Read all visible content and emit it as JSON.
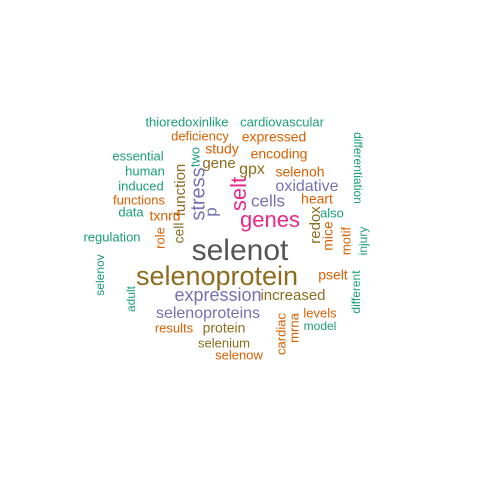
{
  "colors": {
    "teal": "#1B9E77",
    "orange": "#D95F02",
    "purple": "#7570B3",
    "magenta": "#E7298A",
    "olive": "#8C6D1F",
    "gray": "#555555"
  },
  "words": [
    {
      "text": "selenot",
      "color": "gray"
    },
    {
      "text": "selenoprotein",
      "color": "olive"
    },
    {
      "text": "genes",
      "color": "magenta"
    },
    {
      "text": "selt",
      "color": "magenta"
    },
    {
      "text": "stress",
      "color": "purple"
    },
    {
      "text": "expression",
      "color": "purple"
    },
    {
      "text": "selenoproteins",
      "color": "purple"
    },
    {
      "text": "cells",
      "color": "purple"
    },
    {
      "text": "oxidative",
      "color": "purple"
    },
    {
      "text": "increased",
      "color": "olive"
    },
    {
      "text": "p",
      "color": "purple"
    },
    {
      "text": "gpx",
      "color": "olive"
    },
    {
      "text": "gene",
      "color": "olive"
    },
    {
      "text": "function",
      "color": "olive"
    },
    {
      "text": "redox",
      "color": "olive"
    },
    {
      "text": "cell",
      "color": "olive"
    },
    {
      "text": "protein",
      "color": "olive"
    },
    {
      "text": "selenium",
      "color": "olive"
    },
    {
      "text": "heart",
      "color": "orange"
    },
    {
      "text": "mice",
      "color": "orange"
    },
    {
      "text": "encoding",
      "color": "orange"
    },
    {
      "text": "selenoh",
      "color": "orange"
    },
    {
      "text": "study",
      "color": "orange"
    },
    {
      "text": "deficiency",
      "color": "orange"
    },
    {
      "text": "expressed",
      "color": "orange"
    },
    {
      "text": "txnrd",
      "color": "orange"
    },
    {
      "text": "functions",
      "color": "orange"
    },
    {
      "text": "role",
      "color": "orange"
    },
    {
      "text": "motif",
      "color": "orange"
    },
    {
      "text": "pselt",
      "color": "orange"
    },
    {
      "text": "levels",
      "color": "orange"
    },
    {
      "text": "mrna",
      "color": "orange"
    },
    {
      "text": "cardiac",
      "color": "orange"
    },
    {
      "text": "results",
      "color": "orange"
    },
    {
      "text": "selenow",
      "color": "orange"
    },
    {
      "text": "two",
      "color": "teal"
    },
    {
      "text": "thioredoxinlike",
      "color": "teal"
    },
    {
      "text": "cardiovascular",
      "color": "teal"
    },
    {
      "text": "essential",
      "color": "teal"
    },
    {
      "text": "human",
      "color": "teal"
    },
    {
      "text": "induced",
      "color": "teal"
    },
    {
      "text": "data",
      "color": "teal"
    },
    {
      "text": "also",
      "color": "teal"
    },
    {
      "text": "differentiation",
      "color": "teal"
    },
    {
      "text": "injury",
      "color": "teal"
    },
    {
      "text": "regulation",
      "color": "teal"
    },
    {
      "text": "selenov",
      "color": "teal"
    },
    {
      "text": "adult",
      "color": "teal"
    },
    {
      "text": "different",
      "color": "teal"
    },
    {
      "text": "model",
      "color": "teal"
    }
  ]
}
